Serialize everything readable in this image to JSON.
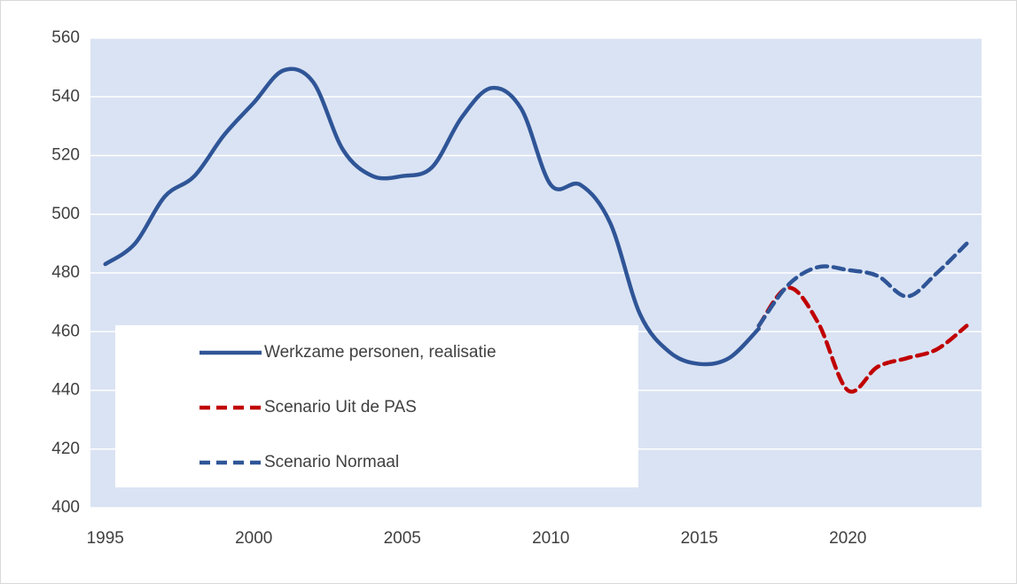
{
  "chart_data": {
    "type": "line",
    "x": [
      1995,
      1996,
      1997,
      1998,
      1999,
      2000,
      2001,
      2002,
      2003,
      2004,
      2005,
      2006,
      2007,
      2008,
      2009,
      2010,
      2011,
      2012,
      2013,
      2014,
      2015,
      2016,
      2017,
      2018,
      2019,
      2020,
      2021,
      2022,
      2023,
      2024
    ],
    "series": [
      {
        "name": "Werkzame personen, realisatie",
        "color": "#2f5597",
        "dash": "solid",
        "values": [
          483,
          490,
          506,
          513,
          527,
          538,
          549,
          545,
          522,
          513,
          513,
          516,
          533,
          543,
          536,
          510,
          510,
          497,
          466,
          453,
          449,
          451,
          461,
          null,
          null,
          null,
          null,
          null,
          null,
          null
        ]
      },
      {
        "name": "Scenario Uit de PAS",
        "color": "#c00000",
        "dash": "dashed",
        "values": [
          null,
          null,
          null,
          null,
          null,
          null,
          null,
          null,
          null,
          null,
          null,
          null,
          null,
          null,
          null,
          null,
          null,
          null,
          null,
          null,
          null,
          null,
          462,
          475,
          463,
          440,
          448,
          451,
          454,
          462
        ]
      },
      {
        "name": "Scenario Normaal",
        "color": "#2f5597",
        "dash": "dashed",
        "values": [
          null,
          null,
          null,
          null,
          null,
          null,
          null,
          null,
          null,
          null,
          null,
          null,
          null,
          null,
          null,
          null,
          null,
          null,
          null,
          null,
          null,
          null,
          462,
          476,
          482,
          481,
          479,
          472,
          480,
          490
        ]
      }
    ],
    "xlim": [
      1994.5,
      2024.5
    ],
    "xticks": [
      1995,
      2000,
      2005,
      2010,
      2015,
      2020
    ],
    "ylim": [
      400,
      560
    ],
    "yticks": [
      400,
      420,
      440,
      460,
      480,
      500,
      520,
      540,
      560
    ],
    "grid": true,
    "legend": "lower left"
  }
}
